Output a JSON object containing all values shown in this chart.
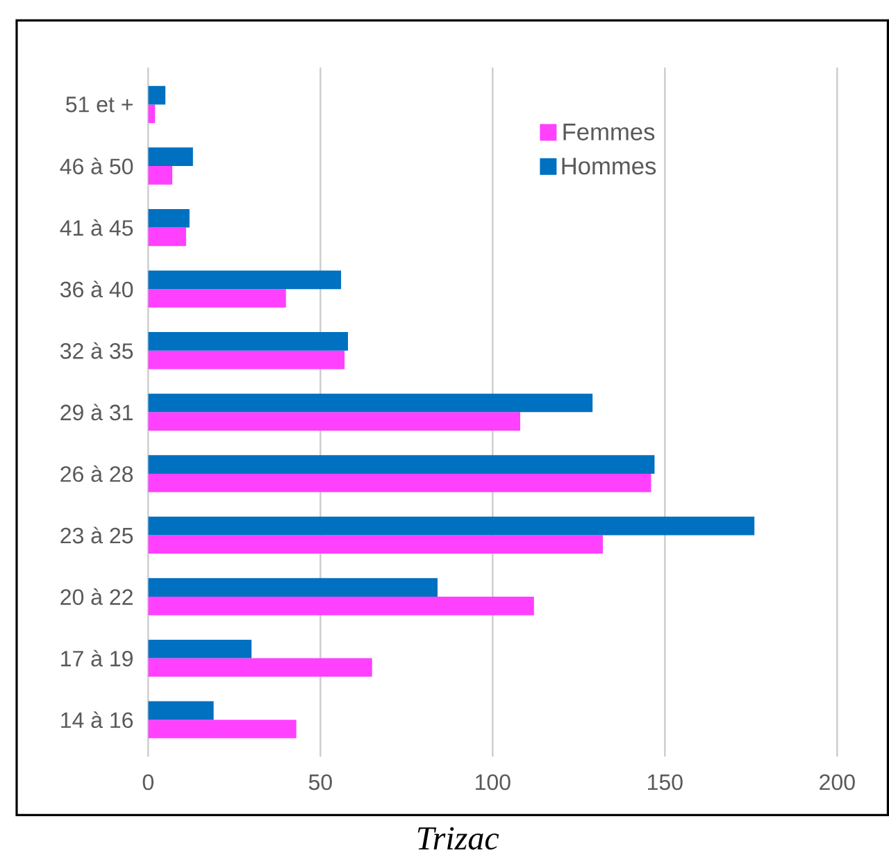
{
  "chart_data": {
    "type": "bar",
    "orientation": "horizontal",
    "categories": [
      "51 et +",
      "46 à 50",
      "41 à 45",
      "36 à 40",
      "32 à 35",
      "29 à 31",
      "26 à 28",
      "23 à 25",
      "20 à 22",
      "17 à 19",
      "14 à 16"
    ],
    "series": [
      {
        "name": "Femmes",
        "color": "#ff40ff",
        "values": [
          2,
          7,
          11,
          40,
          57,
          108,
          146,
          132,
          112,
          65,
          43
        ]
      },
      {
        "name": "Hommes",
        "color": "#0070c0",
        "values": [
          5,
          13,
          12,
          56,
          58,
          129,
          147,
          176,
          84,
          30,
          19
        ]
      }
    ],
    "xlim": [
      0,
      200
    ],
    "xticks": [
      0,
      50,
      100,
      150,
      200
    ],
    "grid": "x",
    "legend": "top right",
    "annotations": [
      "Trizac"
    ]
  }
}
